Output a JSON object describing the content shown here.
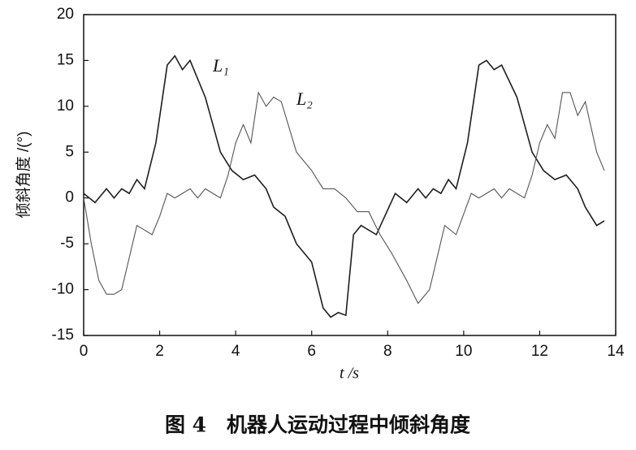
{
  "chart_data": {
    "type": "line",
    "title": "图 4　机器人运动过程中倾斜角度",
    "xlabel": "t /s",
    "ylabel": "倾斜角度 /(°)",
    "xlim": [
      0,
      14
    ],
    "xticks": [
      0,
      2,
      4,
      6,
      8,
      10,
      12,
      14
    ],
    "ylim": [
      -15,
      20
    ],
    "yticks": [
      -15,
      -10,
      -5,
      0,
      5,
      10,
      15,
      20
    ],
    "grid": false,
    "series": [
      {
        "name": "L₁",
        "color": "#1e1e1e",
        "x": [
          0,
          0.3,
          0.6,
          0.8,
          1.0,
          1.2,
          1.4,
          1.6,
          1.9,
          2.2,
          2.4,
          2.6,
          2.8,
          3.2,
          3.6,
          3.9,
          4.2,
          4.5,
          4.8,
          5.0,
          5.3,
          5.6,
          6.0,
          6.3,
          6.5,
          6.7,
          6.9,
          7.1,
          7.3,
          7.7,
          8.2,
          8.5,
          8.8,
          9.0,
          9.2,
          9.4,
          9.6,
          9.8,
          10.1,
          10.4,
          10.6,
          10.8,
          11.0,
          11.4,
          11.8,
          12.1,
          12.4,
          12.7,
          13.0,
          13.2,
          13.5,
          13.7
        ],
        "values": [
          0.5,
          -0.5,
          1,
          0,
          1,
          0.5,
          2,
          1,
          6,
          14.5,
          15.5,
          14,
          15,
          11,
          5,
          3,
          2,
          2.5,
          1,
          -1,
          -2,
          -5,
          -7,
          -12,
          -13,
          -12.5,
          -12.8,
          -4,
          -3,
          -4,
          0.5,
          -0.5,
          1,
          0,
          1,
          0.5,
          2,
          1,
          6,
          14.5,
          15,
          14,
          14.5,
          11,
          5,
          3,
          2,
          2.5,
          1,
          -1,
          -3,
          -2.5
        ]
      },
      {
        "name": "L₂",
        "color": "#555555",
        "x": [
          0,
          0.2,
          0.4,
          0.6,
          0.8,
          1.0,
          1.4,
          1.6,
          1.8,
          2.0,
          2.2,
          2.4,
          2.6,
          2.8,
          3.0,
          3.2,
          3.4,
          3.6,
          3.8,
          4.0,
          4.2,
          4.4,
          4.6,
          4.8,
          5.0,
          5.2,
          5.6,
          6.0,
          6.3,
          6.6,
          6.9,
          7.2,
          7.5,
          7.8,
          8.1,
          8.5,
          8.8,
          9.1,
          9.5,
          9.8,
          10.2,
          10.4,
          10.6,
          10.8,
          11.0,
          11.2,
          11.4,
          11.6,
          11.8,
          12.0,
          12.2,
          12.4,
          12.6,
          12.8,
          13.0,
          13.2,
          13.5,
          13.7
        ],
        "values": [
          0,
          -5,
          -9,
          -10.5,
          -10.5,
          -10,
          -3,
          -3.5,
          -4,
          -2,
          0.5,
          0,
          0.5,
          1,
          0,
          1,
          0.5,
          0,
          2.5,
          6,
          8,
          6,
          11.5,
          10,
          11,
          10.5,
          5,
          3,
          1,
          1,
          0,
          -1.5,
          -1.5,
          -4,
          -6,
          -9,
          -11.5,
          -10,
          -3,
          -4,
          0.5,
          0,
          0.5,
          1,
          0,
          1,
          0.5,
          0,
          2.5,
          6,
          8,
          6.5,
          11.5,
          11.5,
          9,
          10.5,
          5,
          3
        ]
      }
    ]
  }
}
